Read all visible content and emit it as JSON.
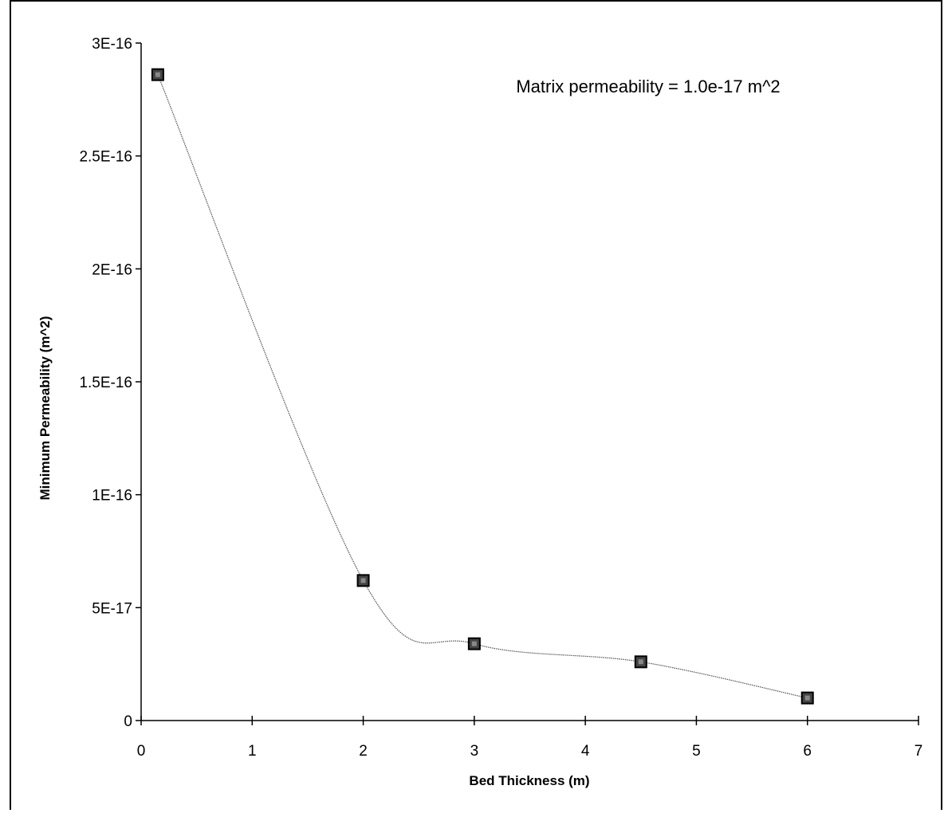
{
  "chart_data": {
    "type": "line",
    "title": "",
    "xlabel": "Bed Thickness (m)",
    "ylabel": "Minimum Permeability (m^2)",
    "annotation": "Matrix permeability = 1.0e-17 m^2",
    "xlim": [
      0,
      7
    ],
    "ylim": [
      0,
      3e-16
    ],
    "x_ticks": [
      0,
      1,
      2,
      3,
      4,
      5,
      6,
      7
    ],
    "x_tick_labels": [
      "0",
      "1",
      "2",
      "3",
      "4",
      "5",
      "6",
      "7"
    ],
    "y_ticks": [
      0,
      5e-17,
      1e-16,
      1.5e-16,
      2e-16,
      2.5e-16,
      3e-16
    ],
    "y_tick_labels": [
      "0",
      "5E-17",
      "1E-16",
      "1.5E-16",
      "2E-16",
      "2.5E-16",
      "3E-16"
    ],
    "grid": false,
    "legend": "none",
    "smoothed_line": true,
    "marker": "square",
    "series": [
      {
        "x": [
          0.15,
          2,
          3,
          4.5,
          6
        ],
        "values": [
          2.86e-16,
          6.2e-17,
          3.4e-17,
          2.6e-17,
          1e-17
        ]
      }
    ]
  },
  "colors": {
    "line": "#555555",
    "marker_fill": "#444444",
    "marker_edge": "#000000",
    "axis": "#000000"
  }
}
